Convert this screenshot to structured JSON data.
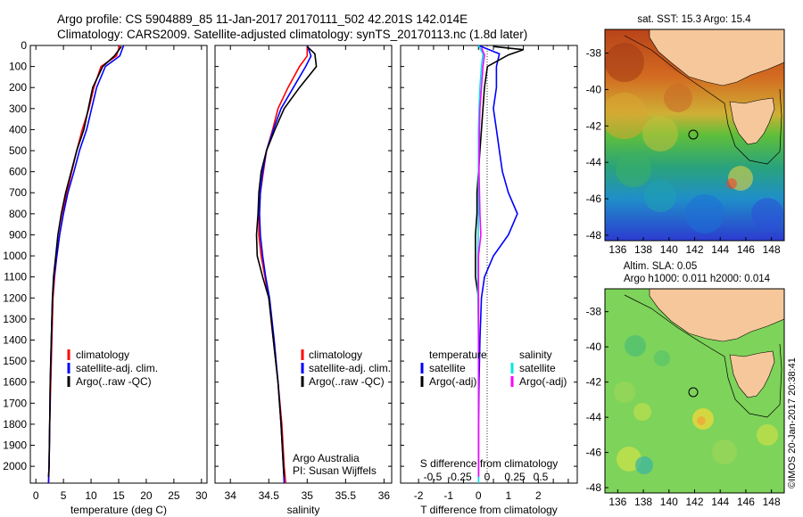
{
  "header": {
    "line1": "Argo profile: CS 5904889_85 11-Jan-2017 20170111_502 42.201S 142.014E",
    "line2": "Climatology: CARS2009. Satellite-adjusted climatology: synTS_20170113.nc (1.8d later)"
  },
  "side_stamp": "©IMOS 20-Jan-2017 20:38:41",
  "colors": {
    "climatology": "#ff0000",
    "satellite": "#0000ff",
    "argo": "#000000",
    "salinity_satellite": "#00e5e5",
    "salinity_argo": "#ff00ff",
    "land": "#f5c79a"
  },
  "chart_data": [
    {
      "type": "line",
      "panel": "temperature",
      "xlabel": "temperature (deg C)",
      "ylabel": "",
      "xlim": [
        -1,
        31
      ],
      "ylim": [
        2080,
        0
      ],
      "xticks": [
        0,
        5,
        10,
        15,
        20,
        25,
        30
      ],
      "yticks": [
        0,
        100,
        200,
        300,
        400,
        500,
        600,
        700,
        800,
        900,
        1000,
        1100,
        1200,
        1300,
        1400,
        1500,
        1600,
        1700,
        1800,
        1900,
        2000
      ],
      "legend": [
        "climatology",
        "satellite-adj. clim.",
        "Argo(..raw -QC)"
      ],
      "series": [
        {
          "name": "climatology",
          "color": "#ff0000",
          "points": [
            [
              15.2,
              0
            ],
            [
              14.6,
              50
            ],
            [
              11.8,
              100
            ],
            [
              10.5,
              200
            ],
            [
              9.6,
              300
            ],
            [
              8.4,
              400
            ],
            [
              7.4,
              500
            ],
            [
              6.5,
              600
            ],
            [
              5.6,
              700
            ],
            [
              4.9,
              800
            ],
            [
              4.3,
              900
            ],
            [
              3.8,
              1000
            ],
            [
              3.4,
              1100
            ],
            [
              3.1,
              1200
            ],
            [
              2.9,
              1400
            ],
            [
              2.7,
              1600
            ],
            [
              2.5,
              1800
            ],
            [
              2.4,
              2000
            ],
            [
              2.3,
              2080
            ]
          ]
        },
        {
          "name": "satellite-adj. clim.",
          "color": "#0000ff",
          "points": [
            [
              15.9,
              0
            ],
            [
              15.2,
              50
            ],
            [
              12.6,
              100
            ],
            [
              11.0,
              200
            ],
            [
              10.1,
              300
            ],
            [
              9.2,
              400
            ],
            [
              7.9,
              500
            ],
            [
              6.9,
              600
            ],
            [
              5.8,
              700
            ],
            [
              5.0,
              800
            ],
            [
              4.3,
              900
            ],
            [
              3.8,
              1000
            ],
            [
              3.3,
              1100
            ],
            [
              3.0,
              1200
            ],
            [
              2.8,
              1400
            ],
            [
              2.6,
              1600
            ],
            [
              2.5,
              1800
            ],
            [
              2.4,
              2000
            ],
            [
              2.3,
              2080
            ]
          ]
        },
        {
          "name": "Argo(..raw -QC)",
          "color": "#000000",
          "points": [
            [
              15.5,
              5
            ],
            [
              14.2,
              50
            ],
            [
              12.1,
              100
            ],
            [
              10.3,
              200
            ],
            [
              9.5,
              300
            ],
            [
              8.7,
              400
            ],
            [
              7.4,
              500
            ],
            [
              6.4,
              600
            ],
            [
              5.4,
              700
            ],
            [
              4.6,
              800
            ],
            [
              4.0,
              900
            ],
            [
              3.6,
              1000
            ],
            [
              3.2,
              1100
            ],
            [
              3.0,
              1200
            ],
            [
              2.8,
              1400
            ],
            [
              2.6,
              1600
            ],
            [
              2.5,
              1800
            ],
            [
              2.4,
              2000
            ],
            [
              2.3,
              2050
            ]
          ]
        }
      ],
      "annotations": []
    },
    {
      "type": "line",
      "panel": "salinity",
      "xlabel": "salinity",
      "ylabel": "",
      "xlim": [
        33.8,
        36.1
      ],
      "ylim": [
        2080,
        0
      ],
      "xticks": [
        34,
        34.5,
        35,
        35.5,
        36
      ],
      "legend": [
        "climatology",
        "satellite-adj. clim.",
        "Argo(..raw -QC)"
      ],
      "series": [
        {
          "name": "climatology",
          "color": "#ff0000",
          "points": [
            [
              35.0,
              0
            ],
            [
              35.0,
              50
            ],
            [
              34.9,
              100
            ],
            [
              34.75,
              200
            ],
            [
              34.62,
              300
            ],
            [
              34.55,
              400
            ],
            [
              34.47,
              500
            ],
            [
              34.43,
              600
            ],
            [
              34.39,
              700
            ],
            [
              34.37,
              800
            ],
            [
              34.37,
              900
            ],
            [
              34.4,
              1000
            ],
            [
              34.45,
              1100
            ],
            [
              34.5,
              1200
            ],
            [
              34.56,
              1400
            ],
            [
              34.62,
              1600
            ],
            [
              34.67,
              1800
            ],
            [
              34.7,
              2000
            ],
            [
              34.72,
              2080
            ]
          ]
        },
        {
          "name": "satellite-adj. clim.",
          "color": "#0000ff",
          "points": [
            [
              35.0,
              0
            ],
            [
              35.05,
              50
            ],
            [
              34.98,
              100
            ],
            [
              34.82,
              200
            ],
            [
              34.66,
              300
            ],
            [
              34.56,
              400
            ],
            [
              34.47,
              500
            ],
            [
              34.42,
              600
            ],
            [
              34.39,
              700
            ],
            [
              34.38,
              800
            ],
            [
              34.39,
              900
            ],
            [
              34.42,
              1000
            ],
            [
              34.46,
              1100
            ],
            [
              34.51,
              1200
            ],
            [
              34.57,
              1400
            ],
            [
              34.62,
              1600
            ],
            [
              34.66,
              1800
            ],
            [
              34.69,
              2000
            ],
            [
              34.7,
              2080
            ]
          ]
        },
        {
          "name": "Argo(..raw -QC)",
          "color": "#000000",
          "points": [
            [
              35.0,
              5
            ],
            [
              35.1,
              40
            ],
            [
              35.12,
              100
            ],
            [
              34.9,
              200
            ],
            [
              34.7,
              300
            ],
            [
              34.58,
              400
            ],
            [
              34.47,
              500
            ],
            [
              34.4,
              600
            ],
            [
              34.37,
              700
            ],
            [
              34.36,
              800
            ],
            [
              34.34,
              900
            ],
            [
              34.35,
              1000
            ],
            [
              34.42,
              1100
            ],
            [
              34.5,
              1200
            ],
            [
              34.56,
              1400
            ],
            [
              34.62,
              1600
            ],
            [
              34.66,
              1800
            ],
            [
              34.69,
              2000
            ],
            [
              34.7,
              2050
            ]
          ]
        }
      ],
      "annotations": [
        "Argo Australia",
        "PI: Susan Wijffels"
      ]
    },
    {
      "type": "line",
      "panel": "difference",
      "xlabel": "T difference from climatology",
      "secondary_xlabel": "S difference from climatology",
      "xlim": [
        -2.6,
        3.3
      ],
      "ylim": [
        2080,
        0
      ],
      "xticks": [
        -2,
        -1.5,
        -1,
        -0.5,
        0,
        0.5,
        1,
        1.5,
        2,
        2.5,
        3
      ],
      "xtick_labels": [
        "-2",
        "-1",
        "0",
        "1",
        "2"
      ],
      "secondary_xtick_labels": [
        "-0.5",
        "-0.25",
        "0",
        "0.25",
        "0.5"
      ],
      "legend": [
        "temperature",
        "satellite",
        "Argo(-adj)",
        "salinity",
        "satellite",
        "Argo(-adj)"
      ],
      "series": [
        {
          "name": "temperature satellite",
          "color": "#0000ff",
          "points": [
            [
              0.0,
              0
            ],
            [
              0.7,
              40
            ],
            [
              0.6,
              100
            ],
            [
              0.6,
              200
            ],
            [
              0.5,
              300
            ],
            [
              0.6,
              400
            ],
            [
              0.7,
              500
            ],
            [
              0.8,
              600
            ],
            [
              1.0,
              700
            ],
            [
              1.3,
              800
            ],
            [
              1.0,
              900
            ],
            [
              0.5,
              1000
            ],
            [
              0.2,
              1100
            ],
            [
              0.1,
              1200
            ],
            [
              0.05,
              1400
            ],
            [
              0.02,
              1600
            ],
            [
              0.0,
              1800
            ],
            [
              0.0,
              2000
            ],
            [
              0.0,
              2080
            ]
          ]
        },
        {
          "name": "temperature Argo(-adj)",
          "color": "#000000",
          "points": [
            [
              0.5,
              5
            ],
            [
              1.5,
              20
            ],
            [
              1.0,
              45
            ],
            [
              0.3,
              100
            ],
            [
              0.2,
              200
            ],
            [
              0.15,
              300
            ],
            [
              0.1,
              400
            ],
            [
              0.05,
              500
            ],
            [
              0.0,
              600
            ],
            [
              -0.05,
              700
            ],
            [
              -0.05,
              800
            ],
            [
              -0.1,
              900
            ],
            [
              -0.1,
              1000
            ],
            [
              -0.1,
              1100
            ],
            [
              0.0,
              1200
            ],
            [
              0.0,
              1400
            ],
            [
              0.0,
              1600
            ],
            [
              0.0,
              1800
            ],
            [
              0.0,
              2000
            ],
            [
              0.0,
              2050
            ]
          ]
        },
        {
          "name": "salinity satellite",
          "color": "#00e5e5",
          "points": [
            [
              0.0,
              0
            ],
            [
              0.15,
              40
            ],
            [
              0.1,
              100
            ],
            [
              0.05,
              200
            ],
            [
              0.02,
              300
            ],
            [
              0.0,
              400
            ],
            [
              0.0,
              600
            ],
            [
              0.0,
              800
            ],
            [
              -0.02,
              1000
            ],
            [
              -0.02,
              1200
            ],
            [
              0.0,
              1400
            ],
            [
              0.0,
              1600
            ],
            [
              0.0,
              1800
            ],
            [
              0.0,
              2000
            ],
            [
              0.0,
              2080
            ]
          ]
        },
        {
          "name": "salinity Argo(-adj)",
          "color": "#ff00ff",
          "points": [
            [
              0.1,
              10
            ],
            [
              0.2,
              45
            ],
            [
              0.15,
              100
            ],
            [
              0.1,
              200
            ],
            [
              0.05,
              300
            ],
            [
              0.03,
              400
            ],
            [
              0.02,
              600
            ],
            [
              0.05,
              800
            ],
            [
              0.08,
              900
            ],
            [
              0.0,
              1000
            ],
            [
              0.0,
              1200
            ],
            [
              0.0,
              1400
            ],
            [
              0.0,
              1600
            ],
            [
              0.0,
              1800
            ],
            [
              0.0,
              2000
            ],
            [
              0.0,
              2050
            ]
          ]
        }
      ]
    },
    {
      "type": "heatmap",
      "panel": "sst-map",
      "title": "sat. SST: 15.3  Argo: 15.4",
      "xticks": [
        136,
        138,
        140,
        142,
        144,
        146,
        148
      ],
      "yticks": [
        -38,
        -40,
        -42,
        -44,
        -46,
        -48
      ],
      "xlim": [
        135,
        149
      ],
      "ylim": [
        -48.3,
        -36.7
      ],
      "argo_position": [
        142.014,
        -42.201
      ]
    },
    {
      "type": "heatmap",
      "panel": "sla-map",
      "title": "Altim. SLA: 0.05",
      "subtitle": "Argo h1000: 0.011  h2000: 0.014",
      "xticks": [
        136,
        138,
        140,
        142,
        144,
        146,
        148
      ],
      "yticks": [
        -38,
        -40,
        -42,
        -44,
        -46,
        -48
      ],
      "xlim": [
        135,
        149
      ],
      "ylim": [
        -48.3,
        -36.7
      ],
      "argo_position": [
        142.014,
        -42.201
      ]
    }
  ]
}
